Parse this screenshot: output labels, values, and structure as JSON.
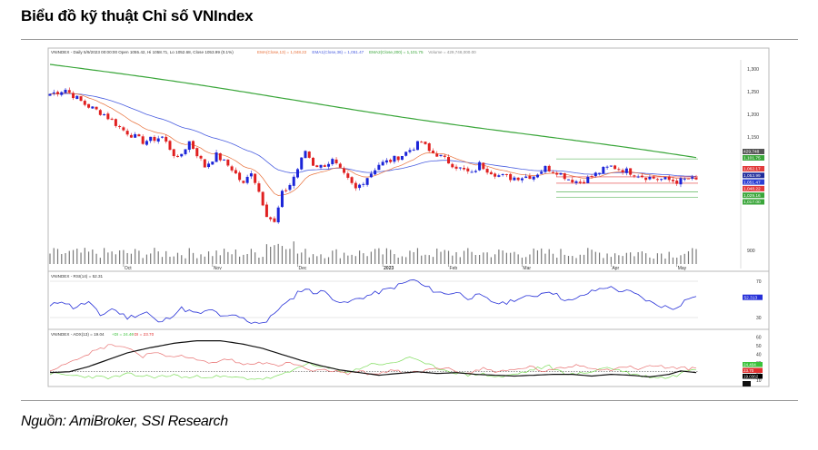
{
  "header": {
    "title": "Biểu đồ kỹ thuật Chỉ số VNIndex"
  },
  "footer": {
    "source": "Nguồn: AmiBroker, SSI Research"
  },
  "chart_data": [
    {
      "type": "candlestick",
      "info": "VNINDEX - Daily 5/9/2023 00:00:00 Open 1055.42, Hi 1058.71, Lo 1052.68, Close 1053.99 (0.1%)",
      "indicators": [
        {
          "text": "EMA(Close,13) = 1,048.22",
          "color": "#e8703a"
        },
        {
          "text": "EMA1(Close,36) = 1,051.47",
          "color": "#4a5ee0"
        },
        {
          "text": "EMA2(Close,200) = 1,101.75",
          "color": "#3aa63a"
        },
        {
          "text": "Volume = 429,748,000.00",
          "color": "#888888"
        }
      ],
      "ylim": [
        870,
        1320
      ],
      "yticks": [
        900,
        1150,
        1200,
        1250,
        1300
      ],
      "ytick_labels": [
        "900",
        "1,150",
        "1,200",
        "1,250",
        "1,300"
      ],
      "months": [
        {
          "label": "Oct",
          "i": 19
        },
        {
          "label": "Nov",
          "i": 42
        },
        {
          "label": "Dec",
          "i": 64
        },
        {
          "label": "2023",
          "i": 86,
          "bold": true
        },
        {
          "label": "Feb",
          "i": 103
        },
        {
          "label": "Mar",
          "i": 122
        },
        {
          "label": "Apr",
          "i": 145
        },
        {
          "label": "May",
          "i": 162
        }
      ],
      "price_path": [
        [
          0,
          1245
        ],
        [
          4,
          1255
        ],
        [
          9,
          1222
        ],
        [
          14,
          1200
        ],
        [
          19,
          1165
        ],
        [
          24,
          1140
        ],
        [
          29,
          1150
        ],
        [
          33,
          1100
        ],
        [
          36,
          1140
        ],
        [
          40,
          1085
        ],
        [
          43,
          1110
        ],
        [
          47,
          1080
        ],
        [
          50,
          1045
        ],
        [
          52,
          1075
        ],
        [
          54,
          1030
        ],
        [
          56,
          980
        ],
        [
          58,
          960
        ],
        [
          60,
          1025
        ],
        [
          62,
          1045
        ],
        [
          64,
          1080
        ],
        [
          66,
          1120
        ],
        [
          68,
          1090
        ],
        [
          70,
          1085
        ],
        [
          73,
          1098
        ],
        [
          76,
          1065
        ],
        [
          79,
          1035
        ],
        [
          82,
          1062
        ],
        [
          85,
          1090
        ],
        [
          88,
          1098
        ],
        [
          91,
          1110
        ],
        [
          94,
          1128
        ],
        [
          96,
          1140
        ],
        [
          98,
          1118
        ],
        [
          100,
          1112
        ],
        [
          103,
          1095
        ],
        [
          106,
          1080
        ],
        [
          109,
          1068
        ],
        [
          111,
          1090
        ],
        [
          113,
          1078
        ],
        [
          116,
          1065
        ],
        [
          119,
          1060
        ],
        [
          122,
          1062
        ],
        [
          125,
          1065
        ],
        [
          128,
          1082
        ],
        [
          131,
          1074
        ],
        [
          134,
          1058
        ],
        [
          137,
          1050
        ],
        [
          140,
          1063
        ],
        [
          143,
          1078
        ],
        [
          145,
          1085
        ],
        [
          148,
          1078
        ],
        [
          151,
          1070
        ],
        [
          154,
          1062
        ],
        [
          157,
          1058
        ],
        [
          160,
          1055
        ],
        [
          162,
          1052
        ],
        [
          165,
          1058
        ],
        [
          167,
          1054
        ]
      ],
      "levels": [
        {
          "value": 1101.75,
          "label": "1,101.75",
          "color": "#3aa63a"
        },
        {
          "value": 1062.17,
          "label": "1,062.17",
          "color": "#e23c3c"
        },
        {
          "value": 1053.99,
          "label": "1,053.99",
          "color": "#1e2a9a"
        },
        {
          "value": 1051.47,
          "label": "1,051.47",
          "color": "#2b3fd4"
        },
        {
          "value": 1048.22,
          "label": "1,048.22",
          "color": "#e23c3c"
        },
        {
          "value": 1029.16,
          "label": "1,029.16",
          "color": "#3aa63a"
        },
        {
          "value": 1017.0,
          "label": "1,017.00",
          "color": "#3aa63a"
        }
      ],
      "volume_label": "429,748"
    },
    {
      "type": "line",
      "info": "VNINDEX - RSI(14) = 52.31",
      "ylim": [
        20,
        78
      ],
      "yticks": [
        70,
        30
      ],
      "value_label": "52.313",
      "series": [
        {
          "points": [
            [
              0,
              42
            ],
            [
              3,
              49
            ],
            [
              6,
              41
            ],
            [
              10,
              47
            ],
            [
              13,
              32
            ],
            [
              16,
              40
            ],
            [
              20,
              30
            ],
            [
              25,
              36
            ],
            [
              28,
              24
            ],
            [
              30,
              28
            ],
            [
              34,
              40
            ],
            [
              38,
              34
            ],
            [
              42,
              38
            ],
            [
              45,
              30
            ],
            [
              48,
              32
            ],
            [
              52,
              25
            ],
            [
              56,
              25
            ],
            [
              59,
              40
            ],
            [
              62,
              48
            ],
            [
              64,
              58
            ],
            [
              66,
              62
            ],
            [
              68,
              57
            ],
            [
              70,
              60
            ],
            [
              73,
              52
            ],
            [
              76,
              45
            ],
            [
              79,
              50
            ],
            [
              82,
              54
            ],
            [
              85,
              58
            ],
            [
              88,
              62
            ],
            [
              91,
              67
            ],
            [
              94,
              72
            ],
            [
              96,
              66
            ],
            [
              99,
              60
            ],
            [
              102,
              56
            ],
            [
              105,
              58
            ],
            [
              108,
              52
            ],
            [
              111,
              54
            ],
            [
              114,
              48
            ],
            [
              117,
              45
            ],
            [
              120,
              50
            ],
            [
              123,
              52
            ],
            [
              126,
              55
            ],
            [
              129,
              60
            ],
            [
              132,
              52
            ],
            [
              135,
              48
            ],
            [
              138,
              55
            ],
            [
              141,
              60
            ],
            [
              144,
              64
            ],
            [
              147,
              60
            ],
            [
              150,
              58
            ],
            [
              153,
              52
            ],
            [
              156,
              45
            ],
            [
              159,
              42
            ],
            [
              161,
              40
            ],
            [
              163,
              45
            ],
            [
              165,
              52
            ],
            [
              167,
              52
            ]
          ]
        }
      ]
    },
    {
      "type": "line",
      "info": "VNINDEX - ADX(13) = 19.04",
      "dmi": [
        {
          "text": "+DI = 24.40",
          "color": "#3ac23a"
        },
        {
          "text": "- DI = 23.70",
          "color": "#e03030"
        }
      ],
      "ylim": [
        5,
        65
      ],
      "yticks": [
        60,
        50,
        40,
        30,
        20,
        10
      ],
      "value_labels": [
        {
          "text": "24.404",
          "color": "#3ac23a"
        },
        {
          "text": "23.70",
          "color": "#e03030"
        },
        {
          "text": "19.0362",
          "color": "#000000"
        }
      ],
      "series": [
        {
          "color": "#111111",
          "points": [
            [
              0,
              19
            ],
            [
              5,
              20
            ],
            [
              10,
              26
            ],
            [
              15,
              34
            ],
            [
              20,
              42
            ],
            [
              26,
              48
            ],
            [
              32,
              53
            ],
            [
              38,
              56
            ],
            [
              44,
              56
            ],
            [
              50,
              52
            ],
            [
              55,
              47
            ],
            [
              60,
              40
            ],
            [
              65,
              33
            ],
            [
              70,
              27
            ],
            [
              75,
              22
            ],
            [
              80,
              19
            ],
            [
              85,
              16
            ],
            [
              90,
              18
            ],
            [
              95,
              20
            ],
            [
              100,
              18
            ],
            [
              105,
              19
            ],
            [
              110,
              17
            ],
            [
              115,
              16
            ],
            [
              120,
              15
            ],
            [
              125,
              16
            ],
            [
              130,
              17
            ],
            [
              135,
              17
            ],
            [
              140,
              15
            ],
            [
              145,
              17
            ],
            [
              150,
              16
            ],
            [
              155,
              14
            ],
            [
              160,
              17
            ],
            [
              163,
              21
            ],
            [
              167,
              19
            ]
          ]
        },
        {
          "color": "#e87070",
          "points": [
            [
              0,
              22
            ],
            [
              4,
              30
            ],
            [
              8,
              38
            ],
            [
              12,
              45
            ],
            [
              16,
              52
            ],
            [
              20,
              48
            ],
            [
              24,
              38
            ],
            [
              27,
              44
            ],
            [
              30,
              36
            ],
            [
              34,
              40
            ],
            [
              38,
              33
            ],
            [
              42,
              30
            ],
            [
              46,
              35
            ],
            [
              50,
              28
            ],
            [
              54,
              32
            ],
            [
              58,
              27
            ],
            [
              62,
              30
            ],
            [
              65,
              26
            ],
            [
              68,
              20
            ],
            [
              72,
              22
            ],
            [
              76,
              18
            ],
            [
              80,
              20
            ],
            [
              84,
              17
            ],
            [
              88,
              22
            ],
            [
              92,
              18
            ],
            [
              96,
              20
            ],
            [
              100,
              25
            ],
            [
              104,
              22
            ],
            [
              108,
              18
            ],
            [
              112,
              24
            ],
            [
              116,
              20
            ],
            [
              120,
              22
            ],
            [
              124,
              26
            ],
            [
              128,
              20
            ],
            [
              132,
              24
            ],
            [
              136,
              28
            ],
            [
              140,
              25
            ],
            [
              144,
              22
            ],
            [
              148,
              26
            ],
            [
              152,
              24
            ],
            [
              156,
              27
            ],
            [
              160,
              25
            ],
            [
              164,
              24
            ],
            [
              167,
              23
            ]
          ]
        },
        {
          "color": "#7ddc5a",
          "points": [
            [
              0,
              18
            ],
            [
              4,
              16
            ],
            [
              8,
              15
            ],
            [
              12,
              14
            ],
            [
              16,
              13
            ],
            [
              20,
              17
            ],
            [
              24,
              15
            ],
            [
              28,
              14
            ],
            [
              32,
              16
            ],
            [
              36,
              13
            ],
            [
              40,
              15
            ],
            [
              44,
              14
            ],
            [
              48,
              13
            ],
            [
              52,
              12
            ],
            [
              56,
              12
            ],
            [
              60,
              16
            ],
            [
              63,
              22
            ],
            [
              66,
              30
            ],
            [
              69,
              26
            ],
            [
              72,
              24
            ],
            [
              75,
              21
            ],
            [
              78,
              20
            ],
            [
              81,
              26
            ],
            [
              84,
              30
            ],
            [
              87,
              28
            ],
            [
              90,
              32
            ],
            [
              93,
              38
            ],
            [
              96,
              30
            ],
            [
              99,
              26
            ],
            [
              102,
              22
            ],
            [
              105,
              19
            ],
            [
              108,
              16
            ],
            [
              111,
              18
            ],
            [
              114,
              15
            ],
            [
              117,
              14
            ],
            [
              120,
              17
            ],
            [
              123,
              20
            ],
            [
              126,
              24
            ],
            [
              129,
              26
            ],
            [
              132,
              20
            ],
            [
              135,
              17
            ],
            [
              138,
              18
            ],
            [
              141,
              22
            ],
            [
              144,
              25
            ],
            [
              147,
              22
            ],
            [
              150,
              18
            ],
            [
              153,
              15
            ],
            [
              156,
              14
            ],
            [
              159,
              13
            ],
            [
              162,
              16
            ],
            [
              165,
              22
            ],
            [
              167,
              24
            ]
          ]
        }
      ]
    }
  ]
}
